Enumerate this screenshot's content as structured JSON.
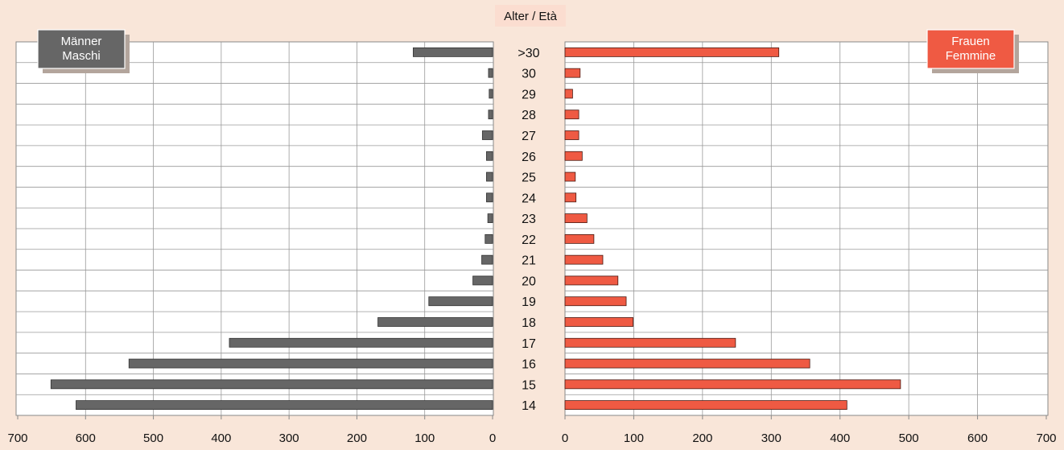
{
  "chart_data": {
    "type": "bar",
    "orientation": "horizontal",
    "layout": "population-pyramid",
    "center_label": "Alter / Età",
    "categories": [
      ">30",
      "30",
      "29",
      "28",
      "27",
      "26",
      "25",
      "24",
      "23",
      "22",
      "21",
      "20",
      "19",
      "18",
      "17",
      "16",
      "15",
      "14"
    ],
    "series": [
      {
        "name": "Männer\nMaschi",
        "side": "left",
        "color": "#666666",
        "values": [
          117,
          6,
          5,
          6,
          15,
          9,
          9,
          9,
          7,
          11,
          16,
          29,
          94,
          169,
          388,
          536,
          651,
          614
        ]
      },
      {
        "name": "Frauen\nFemmine",
        "side": "right",
        "color": "#ef5a43",
        "values": [
          311,
          22,
          11,
          20,
          20,
          25,
          15,
          16,
          32,
          42,
          55,
          77,
          89,
          99,
          248,
          356,
          488,
          410
        ]
      }
    ],
    "xlim": [
      0,
      700
    ],
    "x_ticks": [
      0,
      100,
      200,
      300,
      400,
      500,
      600,
      700
    ],
    "legend_labels": {
      "left": [
        "Männer",
        "Maschi"
      ],
      "right": [
        "Frauen",
        "Femmine"
      ]
    },
    "grid": true
  }
}
